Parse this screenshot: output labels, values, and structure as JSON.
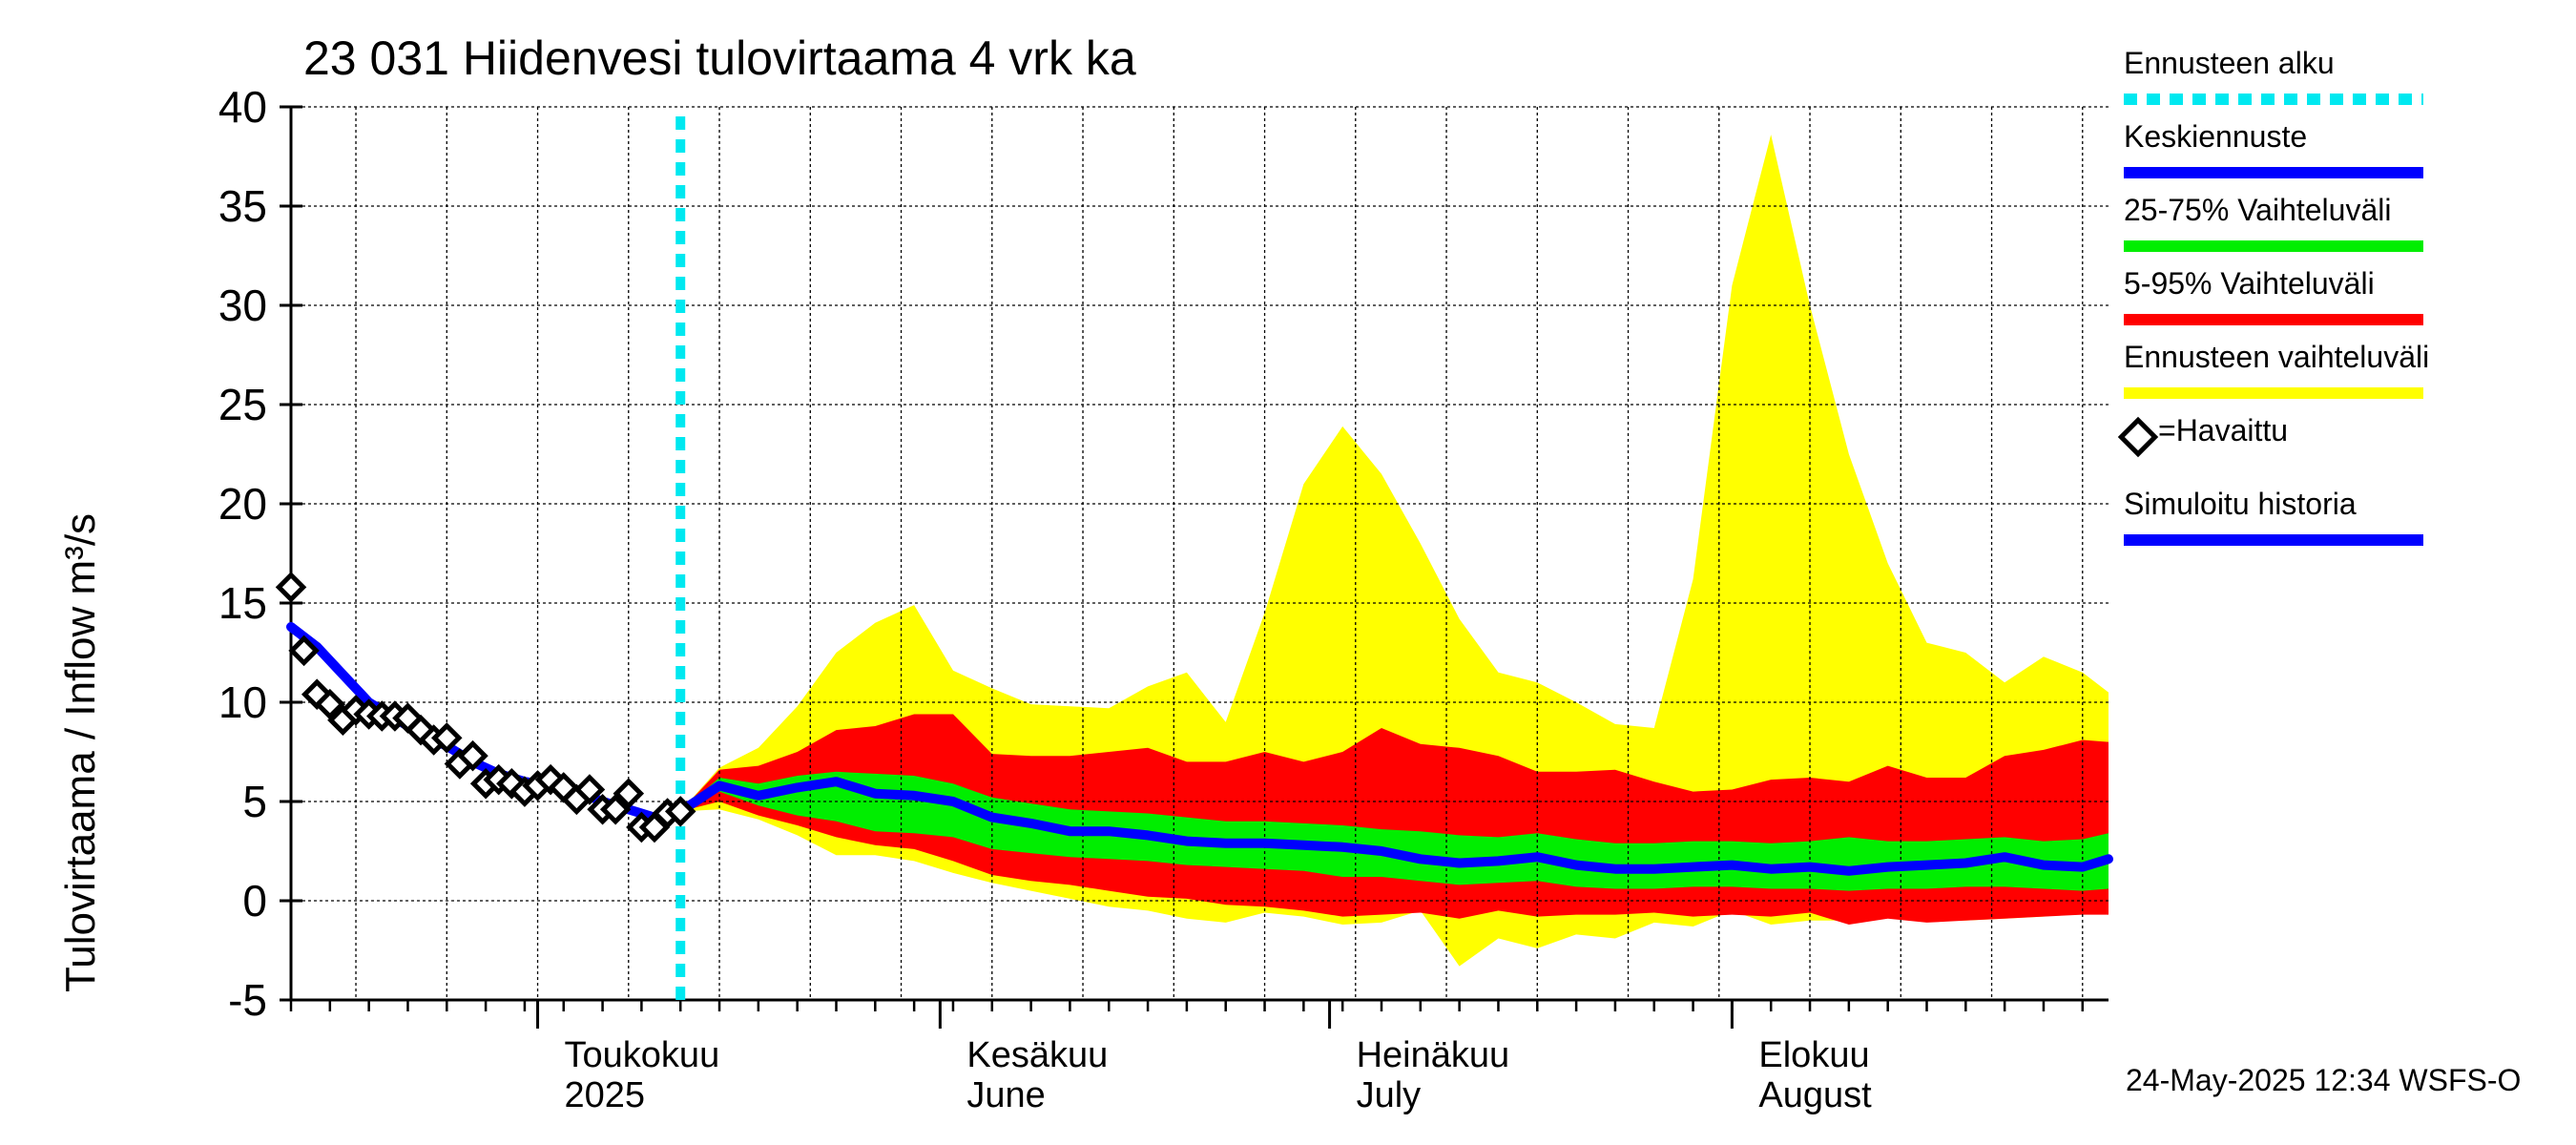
{
  "title": "23 031 Hiidenvesi tulovirtaama 4 vrk ka",
  "y_axis_label": "Tulovirtaama / Inflow    m³/s",
  "timestamp": "24-May-2025 12:34 WSFS-O",
  "legend": {
    "forecast_start": "Ennusteen alku",
    "mean_forecast": "Keskiennuste",
    "range_25_75": "25-75% Vaihteluväli",
    "range_5_95": "5-95% Vaihteluväli",
    "forecast_range": "Ennusteen vaihteluväli",
    "observed": "=Havaittu",
    "simulated_history": "Simuloitu historia"
  },
  "colors": {
    "forecast_start": "#00e8f0",
    "mean": "#0000ff",
    "range_25_75": "#00ee00",
    "range_5_95": "#ff0000",
    "forecast_range": "#ffff00",
    "observed": "#000000",
    "simulated": "#0000ff"
  },
  "chart_data": {
    "type": "line",
    "title": "23 031 Hiidenvesi tulovirtaama 4 vrk ka",
    "ylabel": "Tulovirtaama / Inflow    m³/s",
    "ylim": [
      -5,
      40
    ],
    "yticks": [
      -5,
      0,
      5,
      10,
      15,
      20,
      25,
      30,
      35,
      40
    ],
    "xlim": [
      "2025-04-12",
      "2025-08-30"
    ],
    "x_axis_labels": [
      {
        "date": "2025-05-01",
        "lines": [
          "Toukokuu",
          "2025"
        ]
      },
      {
        "date": "2025-06-01",
        "lines": [
          "Kesäkuu",
          "June"
        ]
      },
      {
        "date": "2025-07-01",
        "lines": [
          "Heinäkuu",
          "July"
        ]
      },
      {
        "date": "2025-08-01",
        "lines": [
          "Elokuu",
          "August"
        ]
      }
    ],
    "grid": true,
    "forecast_start": "2025-05-12",
    "observed": [
      [
        "2025-04-12",
        15.8
      ],
      [
        "2025-04-13",
        12.6
      ],
      [
        "2025-04-14",
        10.4
      ],
      [
        "2025-04-15",
        9.9
      ],
      [
        "2025-04-16",
        9.1
      ],
      [
        "2025-04-17",
        9.6
      ],
      [
        "2025-04-18",
        9.4
      ],
      [
        "2025-04-19",
        9.3
      ],
      [
        "2025-04-20",
        9.3
      ],
      [
        "2025-04-21",
        9.2
      ],
      [
        "2025-04-22",
        8.6
      ],
      [
        "2025-04-23",
        8.1
      ],
      [
        "2025-04-24",
        8.2
      ],
      [
        "2025-04-25",
        6.9
      ],
      [
        "2025-04-26",
        7.3
      ],
      [
        "2025-04-27",
        5.9
      ],
      [
        "2025-04-28",
        6.1
      ],
      [
        "2025-04-29",
        5.9
      ],
      [
        "2025-04-30",
        5.5
      ],
      [
        "2025-05-01",
        5.8
      ],
      [
        "2025-05-02",
        6.1
      ],
      [
        "2025-05-03",
        5.7
      ],
      [
        "2025-05-04",
        5.1
      ],
      [
        "2025-05-05",
        5.6
      ],
      [
        "2025-05-06",
        4.6
      ],
      [
        "2025-05-07",
        4.6
      ],
      [
        "2025-05-08",
        5.4
      ],
      [
        "2025-05-09",
        3.7
      ],
      [
        "2025-05-10",
        3.7
      ],
      [
        "2025-05-11",
        4.4
      ],
      [
        "2025-05-12",
        4.5
      ]
    ],
    "simulated_history": [
      [
        "2025-04-12",
        13.8
      ],
      [
        "2025-04-14",
        12.8
      ],
      [
        "2025-04-16",
        11.4
      ],
      [
        "2025-04-18",
        10.0
      ],
      [
        "2025-04-20",
        9.2
      ],
      [
        "2025-04-22",
        8.4
      ],
      [
        "2025-04-24",
        7.8
      ],
      [
        "2025-04-26",
        7.0
      ],
      [
        "2025-04-28",
        6.4
      ],
      [
        "2025-04-30",
        6.0
      ],
      [
        "2025-05-02",
        5.8
      ],
      [
        "2025-05-04",
        5.5
      ],
      [
        "2025-05-06",
        5.0
      ],
      [
        "2025-05-08",
        4.6
      ],
      [
        "2025-05-10",
        4.2
      ],
      [
        "2025-05-12",
        4.5
      ]
    ],
    "forecast": {
      "dates": [
        "2025-05-12",
        "2025-05-15",
        "2025-05-18",
        "2025-05-21",
        "2025-05-24",
        "2025-05-27",
        "2025-05-30",
        "2025-06-02",
        "2025-06-05",
        "2025-06-08",
        "2025-06-11",
        "2025-06-14",
        "2025-06-17",
        "2025-06-20",
        "2025-06-23",
        "2025-06-26",
        "2025-06-29",
        "2025-07-02",
        "2025-07-05",
        "2025-07-08",
        "2025-07-11",
        "2025-07-14",
        "2025-07-17",
        "2025-07-20",
        "2025-07-23",
        "2025-07-26",
        "2025-07-29",
        "2025-08-01",
        "2025-08-04",
        "2025-08-07",
        "2025-08-10",
        "2025-08-13",
        "2025-08-16",
        "2025-08-19",
        "2025-08-22",
        "2025-08-25",
        "2025-08-28",
        "2025-08-30"
      ],
      "mean": [
        4.5,
        5.8,
        5.3,
        5.7,
        6.0,
        5.4,
        5.3,
        5.0,
        4.2,
        3.9,
        3.5,
        3.5,
        3.3,
        3.0,
        2.9,
        2.9,
        2.8,
        2.7,
        2.5,
        2.1,
        1.9,
        2.0,
        2.2,
        1.8,
        1.6,
        1.6,
        1.7,
        1.8,
        1.6,
        1.7,
        1.5,
        1.7,
        1.8,
        1.9,
        2.2,
        1.8,
        1.7,
        2.1
      ],
      "p25": [
        4.5,
        5.5,
        4.8,
        4.3,
        4.0,
        3.5,
        3.4,
        3.2,
        2.6,
        2.4,
        2.2,
        2.1,
        2.0,
        1.8,
        1.7,
        1.6,
        1.5,
        1.2,
        1.2,
        1.0,
        0.8,
        0.9,
        1.0,
        0.7,
        0.6,
        0.6,
        0.7,
        0.7,
        0.6,
        0.6,
        0.5,
        0.6,
        0.6,
        0.7,
        0.7,
        0.6,
        0.5,
        0.6
      ],
      "p75": [
        4.5,
        6.2,
        5.9,
        6.3,
        6.5,
        6.4,
        6.3,
        5.9,
        5.2,
        4.9,
        4.6,
        4.5,
        4.4,
        4.2,
        4.0,
        4.0,
        3.9,
        3.8,
        3.6,
        3.5,
        3.3,
        3.2,
        3.4,
        3.1,
        2.9,
        2.9,
        3.0,
        3.0,
        2.9,
        3.0,
        3.2,
        3.0,
        3.0,
        3.1,
        3.2,
        3.0,
        3.1,
        3.4
      ],
      "p05": [
        4.5,
        5.0,
        4.3,
        3.8,
        3.2,
        2.8,
        2.6,
        2.0,
        1.3,
        1.0,
        0.8,
        0.5,
        0.2,
        0.1,
        -0.2,
        -0.3,
        -0.5,
        -0.8,
        -0.7,
        -0.6,
        -0.9,
        -0.5,
        -0.8,
        -0.7,
        -0.7,
        -0.6,
        -0.8,
        -0.7,
        -0.8,
        -0.6,
        -1.2,
        -0.9,
        -1.1,
        -1.0,
        -0.9,
        -0.8,
        -0.7,
        -0.7
      ],
      "p95": [
        4.5,
        6.6,
        6.8,
        7.5,
        8.6,
        8.8,
        9.4,
        9.4,
        7.4,
        7.3,
        7.3,
        7.5,
        7.7,
        7.0,
        7.0,
        7.5,
        7.0,
        7.5,
        8.7,
        7.9,
        7.7,
        7.3,
        6.5,
        6.5,
        6.6,
        6.0,
        5.5,
        5.6,
        6.1,
        6.2,
        6.0,
        6.8,
        6.2,
        6.2,
        7.3,
        7.6,
        8.1,
        8.0
      ],
      "min": [
        4.5,
        4.6,
        4.1,
        3.3,
        2.3,
        2.3,
        2.0,
        1.4,
        0.9,
        0.5,
        0.1,
        -0.3,
        -0.5,
        -0.9,
        -1.1,
        -0.6,
        -0.8,
        -1.2,
        -1.1,
        -0.5,
        -3.3,
        -1.9,
        -2.4,
        -1.7,
        -1.9,
        -1.1,
        -1.3,
        -0.5,
        -1.2,
        -1.0,
        -1.0,
        -0.6,
        -1.0,
        -1.0,
        -0.9,
        -0.8,
        -0.6,
        -0.6
      ],
      "max": [
        4.5,
        6.7,
        7.7,
        9.8,
        12.5,
        14.0,
        14.9,
        11.6,
        10.7,
        9.9,
        9.8,
        9.7,
        10.8,
        11.5,
        9.0,
        14.5,
        21.0,
        23.9,
        21.5,
        18.0,
        14.2,
        11.5,
        11.0,
        10.0,
        8.9,
        8.7,
        16.2,
        31.0,
        38.6,
        30.0,
        22.5,
        17.0,
        13.0,
        12.5,
        11.0,
        12.3,
        11.5,
        10.5
      ]
    }
  }
}
